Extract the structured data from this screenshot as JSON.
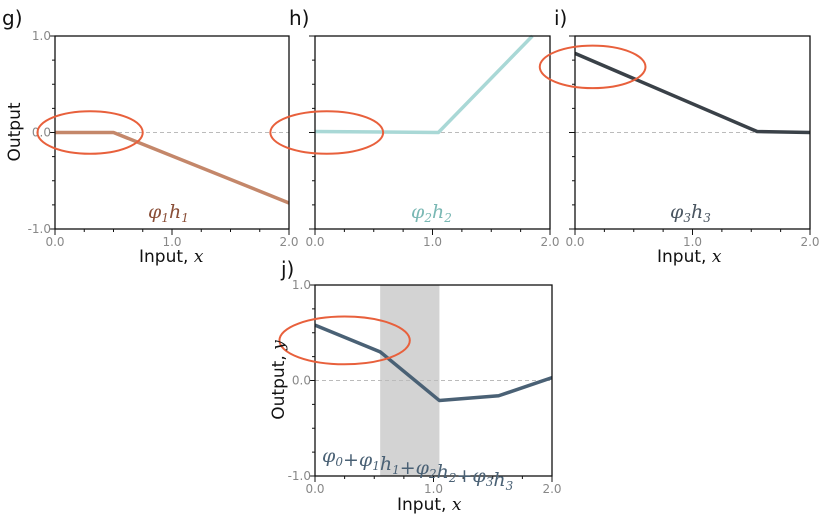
{
  "chart_data": [
    {
      "panel": "g)",
      "type": "line",
      "series": [
        {
          "name": "φ1h1",
          "color": "#c4876a",
          "x": [
            0.0,
            0.5,
            2.0
          ],
          "y": [
            0.0,
            0.0,
            -0.73
          ]
        }
      ],
      "label_color": "#8a4f38",
      "xlim": [
        0.0,
        2.0
      ],
      "ylim": [
        -1.0,
        1.0
      ],
      "xticks": [
        "0.0",
        "1.0",
        "2.0"
      ],
      "yticks": [
        "-1.0",
        "0.0",
        "1.0"
      ],
      "xlabel": "Input, x",
      "ylabel": "Output",
      "zero_line": true,
      "highlight_ellipse": {
        "cx": 0.3,
        "cy": 0.0,
        "rx": 0.45,
        "ry": 0.22,
        "color": "#e8603c"
      }
    },
    {
      "panel": "h)",
      "type": "line",
      "series": [
        {
          "name": "φ2h2",
          "color": "#a9d8d6",
          "x": [
            0.0,
            1.05,
            1.85
          ],
          "y": [
            0.01,
            0.0,
            1.0
          ]
        }
      ],
      "label_color": "#7ab8b4",
      "xlim": [
        0.0,
        2.0
      ],
      "ylim": [
        -1.0,
        1.0
      ],
      "xticks": [
        "0.0",
        "1.0",
        "2.0"
      ],
      "yticks": [],
      "xlabel": "",
      "ylabel": "",
      "zero_line": true,
      "highlight_ellipse": {
        "cx": 0.1,
        "cy": 0.0,
        "rx": 0.48,
        "ry": 0.22,
        "color": "#e8603c"
      }
    },
    {
      "panel": "i)",
      "type": "line",
      "series": [
        {
          "name": "φ3h3",
          "color": "#3a4148",
          "x": [
            0.0,
            1.55,
            2.0
          ],
          "y": [
            0.82,
            0.01,
            0.0
          ]
        }
      ],
      "label_color": "#4a5560",
      "xlim": [
        0.0,
        2.0
      ],
      "ylim": [
        -1.0,
        1.0
      ],
      "xticks": [
        "0.0",
        "1.0",
        "2.0"
      ],
      "yticks": [],
      "xlabel": "Input, x",
      "ylabel": "",
      "zero_line": true,
      "highlight_ellipse": {
        "cx": 0.15,
        "cy": 0.68,
        "rx": 0.45,
        "ry": 0.22,
        "color": "#e8603c"
      }
    },
    {
      "panel": "j)",
      "type": "line",
      "series": [
        {
          "name": "φ0+φ1h1+φ2h2+φ3h3",
          "color": "#4a6175",
          "x": [
            0.0,
            0.55,
            1.05,
            1.55,
            2.0
          ],
          "y": [
            0.58,
            0.3,
            -0.21,
            -0.16,
            0.03
          ]
        }
      ],
      "label_color": "#4a6175",
      "shaded_x_range": [
        0.55,
        1.05
      ],
      "xlim": [
        0.0,
        2.0
      ],
      "ylim": [
        -1.0,
        1.0
      ],
      "xticks": [
        "0.0",
        "1.0",
        "2.0"
      ],
      "yticks": [
        "-1.0",
        "0.0",
        "1.0"
      ],
      "xlabel": "Input, x",
      "ylabel": "Output, y",
      "zero_line": true,
      "highlight_ellipse": {
        "cx": 0.25,
        "cy": 0.42,
        "rx": 0.55,
        "ry": 0.25,
        "color": "#e8603c"
      }
    }
  ],
  "labels": {
    "g": {
      "letter": "g)",
      "main": "φ",
      "sub1": "1",
      "main2": "h",
      "sub2": "1"
    },
    "h": {
      "letter": "h)",
      "main": "φ",
      "sub1": "2",
      "main2": "h",
      "sub2": "2"
    },
    "i": {
      "letter": "i)",
      "main": "φ",
      "sub1": "3",
      "main2": "h",
      "sub2": "3"
    },
    "j": {
      "letter": "j)",
      "parts": [
        {
          "t": "φ",
          "s": "0"
        },
        {
          "t": "+",
          "s": ""
        },
        {
          "t": "φ",
          "s": "1"
        },
        {
          "t": "h",
          "s": "1"
        },
        {
          "t": "+",
          "s": ""
        },
        {
          "t": "φ",
          "s": "2"
        },
        {
          "t": "h",
          "s": "2"
        },
        {
          "t": "+",
          "s": ""
        },
        {
          "t": "φ",
          "s": "3"
        },
        {
          "t": "h",
          "s": "3"
        }
      ]
    }
  },
  "axis_titles": {
    "g_xlabel_plain": "Input, ",
    "g_xlabel_var": "x",
    "g_ylabel": "Output",
    "i_xlabel_plain": "Input, ",
    "i_xlabel_var": "x",
    "j_xlabel_plain": "Input, ",
    "j_xlabel_var": "x",
    "j_ylabel_plain": "Output, ",
    "j_ylabel_var": "y"
  },
  "colors": {
    "zero_line": "#bbbbbb",
    "shade": "#d3d3d3",
    "ellipse": "#e8603c",
    "frame": "#111111"
  }
}
